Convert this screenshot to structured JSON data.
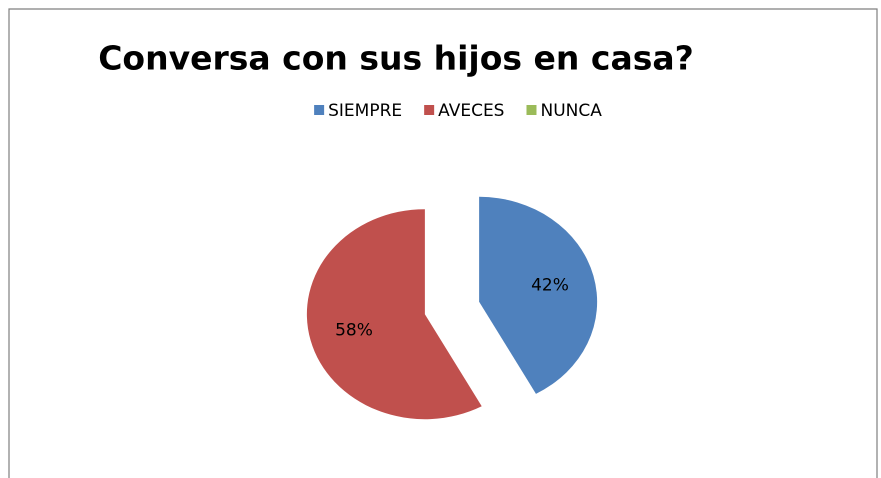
{
  "chart_data": {
    "type": "pie",
    "title": "Conversa con sus hijos en casa?",
    "categories": [
      "SIEMPRE",
      "AVECES",
      "NUNCA"
    ],
    "values": [
      42,
      58,
      0
    ],
    "value_labels": [
      "42%",
      "58%",
      null
    ],
    "colors": [
      "#4f81bd",
      "#c0504d",
      "#9bbb59"
    ],
    "legend": "top"
  }
}
